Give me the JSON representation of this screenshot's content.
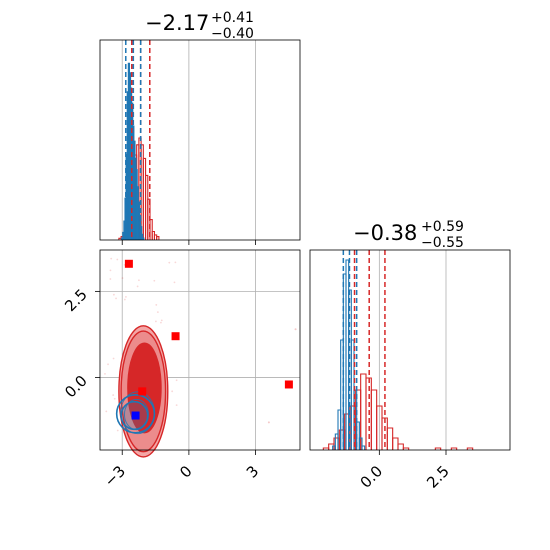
{
  "chart_data": {
    "type": "corner",
    "series": [
      {
        "name": "",
        "color": "#d62728"
      },
      {
        "name": "",
        "color": "#1f77b4"
      }
    ],
    "panels": [
      {
        "id": "hist-param-1",
        "type": "histogram",
        "xlim": [
          -4.0,
          5.0
        ],
        "title": {
          "main": "−2.17",
          "sup": "+0.41",
          "sub": "−0.40"
        },
        "quantiles": {
          "red": [
            -2.57,
            -2.17,
            -1.76
          ],
          "blue": [
            -2.84,
            -2.5,
            -2.17
          ]
        },
        "red_hist": [
          {
            "x": -3.1,
            "h": 0.01
          },
          {
            "x": -3.0,
            "h": 0.02
          },
          {
            "x": -2.9,
            "h": 0.03
          },
          {
            "x": -2.8,
            "h": 0.05
          },
          {
            "x": -2.7,
            "h": 0.1
          },
          {
            "x": -2.6,
            "h": 0.2
          },
          {
            "x": -2.5,
            "h": 0.38
          },
          {
            "x": -2.4,
            "h": 0.5
          },
          {
            "x": -2.3,
            "h": 0.56
          },
          {
            "x": -2.2,
            "h": 0.6
          },
          {
            "x": -2.1,
            "h": 0.56
          },
          {
            "x": -2.0,
            "h": 0.48
          },
          {
            "x": -1.9,
            "h": 0.38
          },
          {
            "x": -1.8,
            "h": 0.24
          },
          {
            "x": -1.7,
            "h": 0.12
          },
          {
            "x": -1.6,
            "h": 0.05
          },
          {
            "x": -1.5,
            "h": 0.03
          },
          {
            "x": -1.4,
            "h": 0.02
          }
        ],
        "blue_hist": [
          {
            "x": -3.0,
            "h": 0.01
          },
          {
            "x": -2.95,
            "h": 0.04
          },
          {
            "x": -2.9,
            "h": 0.1
          },
          {
            "x": -2.85,
            "h": 0.22
          },
          {
            "x": -2.8,
            "h": 0.45
          },
          {
            "x": -2.75,
            "h": 0.78
          },
          {
            "x": -2.7,
            "h": 0.93
          },
          {
            "x": -2.65,
            "h": 0.88
          },
          {
            "x": -2.6,
            "h": 0.8
          },
          {
            "x": -2.55,
            "h": 0.72
          },
          {
            "x": -2.5,
            "h": 0.6
          },
          {
            "x": -2.45,
            "h": 0.52
          },
          {
            "x": -2.4,
            "h": 0.43
          },
          {
            "x": -2.35,
            "h": 0.37
          },
          {
            "x": -2.3,
            "h": 0.28
          },
          {
            "x": -2.25,
            "h": 0.2
          },
          {
            "x": -2.2,
            "h": 0.13
          },
          {
            "x": -2.15,
            "h": 0.07
          },
          {
            "x": -2.1,
            "h": 0.03
          },
          {
            "x": -2.05,
            "h": 0.01
          }
        ]
      },
      {
        "id": "scatter-2d",
        "type": "contour",
        "xlim": [
          -4.0,
          5.0
        ],
        "ylim": [
          -2.1,
          3.7
        ],
        "x_ticks": [
          "−3",
          "0",
          "3"
        ],
        "x_tick_values": [
          -3,
          0,
          3
        ],
        "y_ticks": [
          "0.0",
          "2.5"
        ],
        "y_tick_values": [
          0.0,
          2.5
        ],
        "red_markers": [
          {
            "x": -2.7,
            "y": 3.3
          },
          {
            "x": -0.6,
            "y": 1.2
          },
          {
            "x": -2.1,
            "y": -0.4
          },
          {
            "x": 4.5,
            "y": -0.2
          }
        ],
        "blue_markers": [
          {
            "x": -2.4,
            "y": -1.1
          }
        ],
        "red_contours": [
          {
            "cx": -2.05,
            "cy": -0.4,
            "rx": 1.1,
            "ry": 1.9
          },
          {
            "cx": -2.05,
            "cy": -0.4,
            "rx": 1.0,
            "ry": 1.75
          },
          {
            "cx": -2.0,
            "cy": -0.3,
            "rx": 0.75,
            "ry": 1.3
          }
        ],
        "blue_contours": [
          {
            "cx": -2.4,
            "cy": -1.05,
            "rx": 0.85,
            "ry": 0.55
          },
          {
            "cx": -2.45,
            "cy": -1.1,
            "rx": 0.6,
            "ry": 0.4
          }
        ]
      },
      {
        "id": "hist-param-2",
        "type": "histogram",
        "xlim": [
          -2.6,
          4.9
        ],
        "x_ticks": [
          "0.0",
          "2.5"
        ],
        "x_tick_values": [
          0.0,
          2.5
        ],
        "title": {
          "main": "−0.38",
          "sup": "+0.59",
          "sub": "−0.55"
        },
        "quantiles": {
          "red": [
            -0.93,
            -0.38,
            0.21
          ],
          "blue": [
            -1.35,
            -1.12,
            -0.85
          ]
        },
        "red_hist": [
          {
            "x": -2.0,
            "h": 0.01
          },
          {
            "x": -1.8,
            "h": 0.03
          },
          {
            "x": -1.6,
            "h": 0.06
          },
          {
            "x": -1.4,
            "h": 0.1
          },
          {
            "x": -1.2,
            "h": 0.18
          },
          {
            "x": -1.0,
            "h": 0.22
          },
          {
            "x": -0.8,
            "h": 0.3
          },
          {
            "x": -0.6,
            "h": 0.38
          },
          {
            "x": -0.4,
            "h": 0.36
          },
          {
            "x": -0.2,
            "h": 0.3
          },
          {
            "x": 0.0,
            "h": 0.22
          },
          {
            "x": 0.2,
            "h": 0.16
          },
          {
            "x": 0.4,
            "h": 0.11
          },
          {
            "x": 0.6,
            "h": 0.06
          },
          {
            "x": 0.8,
            "h": 0.03
          },
          {
            "x": 1.0,
            "h": 0.01
          },
          {
            "x": 2.2,
            "h": 0.01
          },
          {
            "x": 2.8,
            "h": 0.01
          },
          {
            "x": 3.4,
            "h": 0.01
          }
        ],
        "blue_hist": [
          {
            "x": -1.7,
            "h": 0.02
          },
          {
            "x": -1.6,
            "h": 0.08
          },
          {
            "x": -1.5,
            "h": 0.2
          },
          {
            "x": -1.4,
            "h": 0.55
          },
          {
            "x": -1.3,
            "h": 0.88
          },
          {
            "x": -1.2,
            "h": 0.95
          },
          {
            "x": -1.1,
            "h": 0.8
          },
          {
            "x": -1.0,
            "h": 0.55
          },
          {
            "x": -0.9,
            "h": 0.3
          },
          {
            "x": -0.8,
            "h": 0.14
          },
          {
            "x": -0.7,
            "h": 0.06
          },
          {
            "x": -0.6,
            "h": 0.02
          }
        ]
      }
    ]
  }
}
